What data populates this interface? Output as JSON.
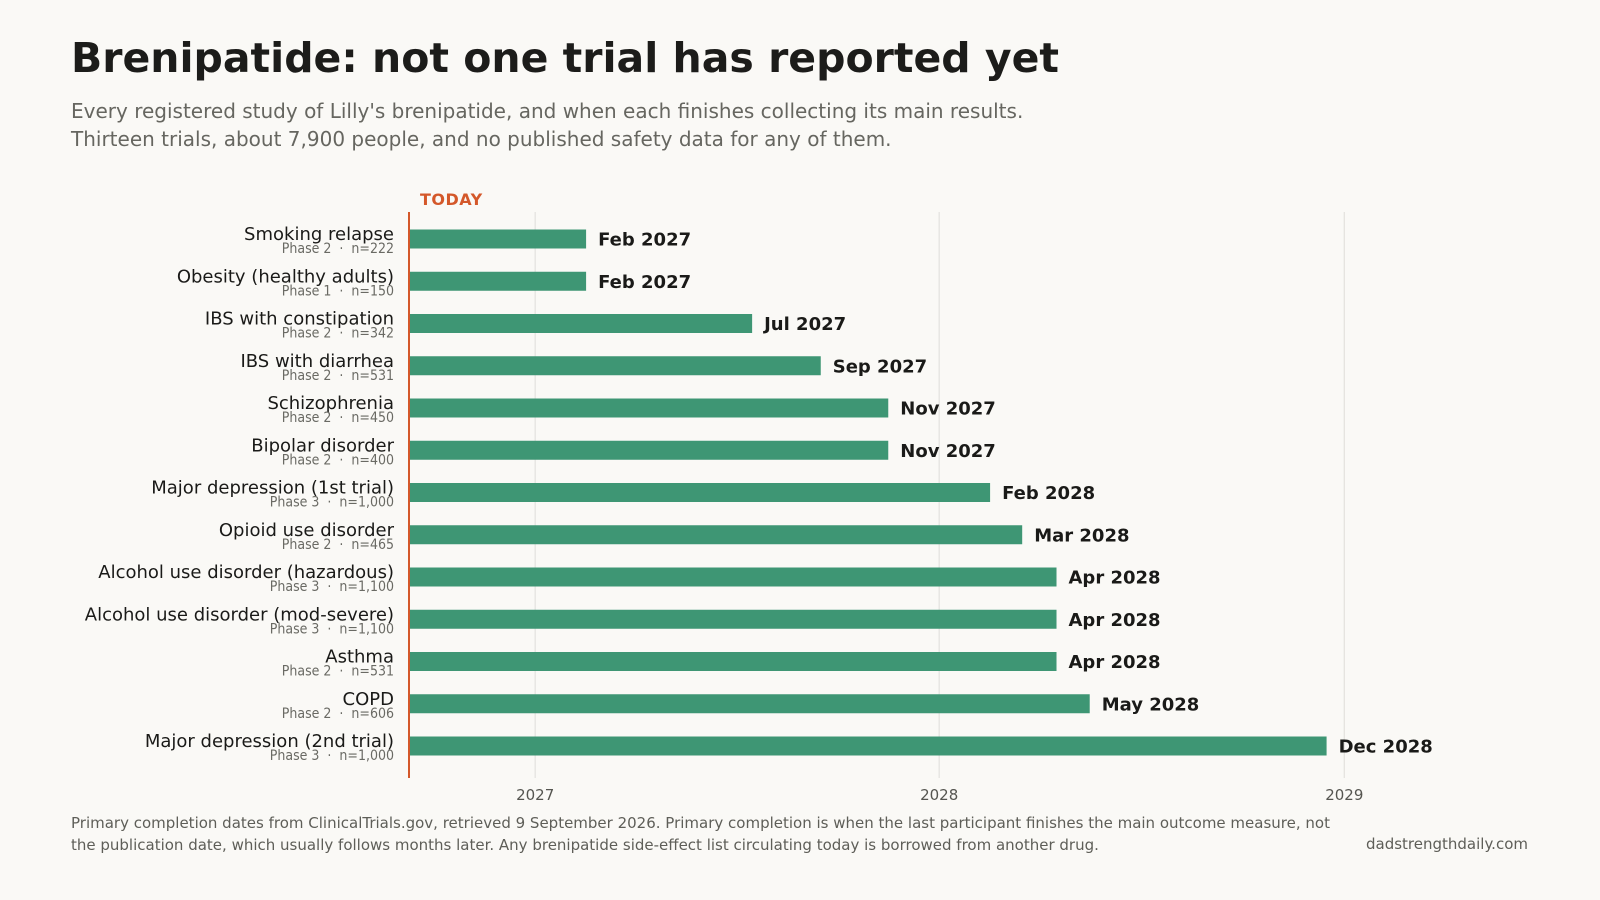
{
  "title": "Brenipatide: not one trial has reported yet",
  "subtitle": [
    "Every registered study of Lilly's brenipatide, and when each finishes collecting its main results.",
    "Thirteen trials, about 7,900 people, and no published safety data for any of them."
  ],
  "footer": [
    "Primary completion dates from ClinicalTrials.gov, retrieved 9 September 2026. Primary completion is when the last participant finishes the main outcome measure, not",
    "the publication date, which usually follows months later. Any brenipatide side-effect list circulating today is borrowed from another drug."
  ],
  "source": "dadstrengthdaily.com",
  "colors": {
    "bar": "#3e9674",
    "today": "#d4582a",
    "grid": "#e3e2de",
    "label": "#1a1a18",
    "sublabel": "#6a6a64"
  },
  "chart_data": {
    "type": "bar",
    "orientation": "horizontal",
    "today_label": "TODAY",
    "today_date": "2026-09-09",
    "x_ticks": [
      "2027",
      "2028",
      "2029"
    ],
    "x_range": [
      "2026-09-09",
      "2029-07-01"
    ],
    "grid": true,
    "trials": [
      {
        "name": "Smoking relapse",
        "meta": "Phase 2  ·  n=222",
        "completion": "2027-02",
        "completion_label": "Feb 2027"
      },
      {
        "name": "Obesity (healthy adults)",
        "meta": "Phase 1  ·  n=150",
        "completion": "2027-02",
        "completion_label": "Feb 2027"
      },
      {
        "name": "IBS with constipation",
        "meta": "Phase 2  ·  n=342",
        "completion": "2027-07",
        "completion_label": "Jul 2027"
      },
      {
        "name": "IBS with diarrhea",
        "meta": "Phase 2  ·  n=531",
        "completion": "2027-09",
        "completion_label": "Sep 2027"
      },
      {
        "name": "Schizophrenia",
        "meta": "Phase 2  ·  n=450",
        "completion": "2027-11",
        "completion_label": "Nov 2027"
      },
      {
        "name": "Bipolar disorder",
        "meta": "Phase 2  ·  n=400",
        "completion": "2027-11",
        "completion_label": "Nov 2027"
      },
      {
        "name": "Major depression (1st trial)",
        "meta": "Phase 3  ·  n=1,000",
        "completion": "2028-02",
        "completion_label": "Feb 2028"
      },
      {
        "name": "Opioid use disorder",
        "meta": "Phase 2  ·  n=465",
        "completion": "2028-03",
        "completion_label": "Mar 2028"
      },
      {
        "name": "Alcohol use disorder (hazardous)",
        "meta": "Phase 3  ·  n=1,100",
        "completion": "2028-04",
        "completion_label": "Apr 2028"
      },
      {
        "name": "Alcohol use disorder (mod-severe)",
        "meta": "Phase 3  ·  n=1,100",
        "completion": "2028-04",
        "completion_label": "Apr 2028"
      },
      {
        "name": "Asthma",
        "meta": "Phase 2  ·  n=531",
        "completion": "2028-04",
        "completion_label": "Apr 2028"
      },
      {
        "name": "COPD",
        "meta": "Phase 2  ·  n=606",
        "completion": "2028-05",
        "completion_label": "May 2028"
      },
      {
        "name": "Major depression (2nd trial)",
        "meta": "Phase 3  ·  n=1,000",
        "completion": "2028-12",
        "completion_label": "Dec 2028"
      }
    ]
  }
}
